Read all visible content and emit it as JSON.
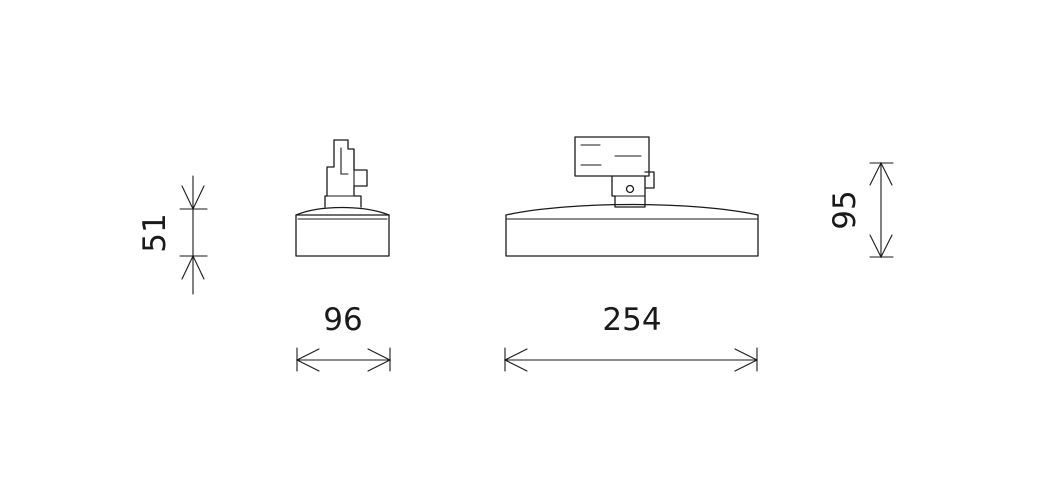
{
  "drawing": {
    "type": "technical-dimension-drawing",
    "line_color": "#1a1a1a",
    "background": "#ffffff",
    "dimensions": {
      "side_height": "51",
      "side_width": "96",
      "front_width": "254",
      "front_height": "95"
    }
  }
}
